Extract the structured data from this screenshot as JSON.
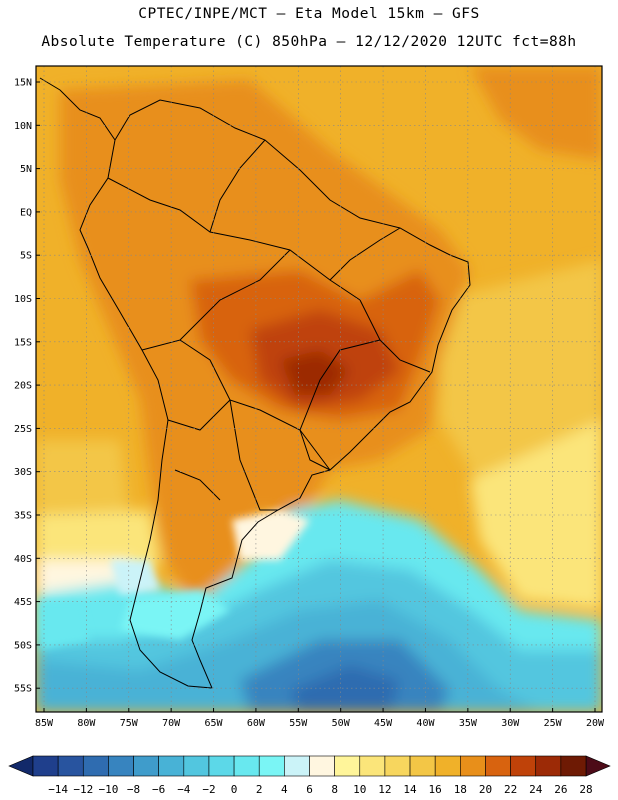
{
  "header": {
    "line1": "CPTEC/INPE/MCT –  Eta Model 15km – GFS",
    "line2": "Absolute Temperature (C) 850hPa – 12/12/2020 12UTC fct=88h"
  },
  "axes": {
    "lat_labels": [
      "15N",
      "10N",
      "5N",
      "EQ",
      "5S",
      "10S",
      "15S",
      "20S",
      "25S",
      "30S",
      "35S",
      "40S",
      "45S",
      "50S",
      "55S"
    ],
    "lon_labels": [
      "85W",
      "80W",
      "75W",
      "70W",
      "65W",
      "60W",
      "55W",
      "50W",
      "45W",
      "40W",
      "35W",
      "30W",
      "25W",
      "20W"
    ]
  },
  "colorbar": {
    "labels": [
      "-14",
      "-12",
      "-10",
      "-8",
      "-6",
      "-4",
      "-2",
      "0",
      "2",
      "4",
      "6",
      "8",
      "10",
      "12",
      "14",
      "16",
      "18",
      "20",
      "22",
      "24",
      "26",
      "28"
    ],
    "colors": [
      "#1f3f8c",
      "#28549f",
      "#2f6cb0",
      "#3784bf",
      "#3f9ccb",
      "#48b2d6",
      "#52c6df",
      "#5cd8e8",
      "#68e8ef",
      "#7af5f5",
      "#cbf3f8",
      "#fff6e0",
      "#fff59a",
      "#fbe57a",
      "#f7d65e",
      "#f3c646",
      "#f0b129",
      "#e88f1a",
      "#d8630f",
      "#bf4209",
      "#9c2a06",
      "#6e1a04"
    ],
    "left_arrow_color": "#12296a",
    "right_arrow_color": "#4d0b18"
  }
}
